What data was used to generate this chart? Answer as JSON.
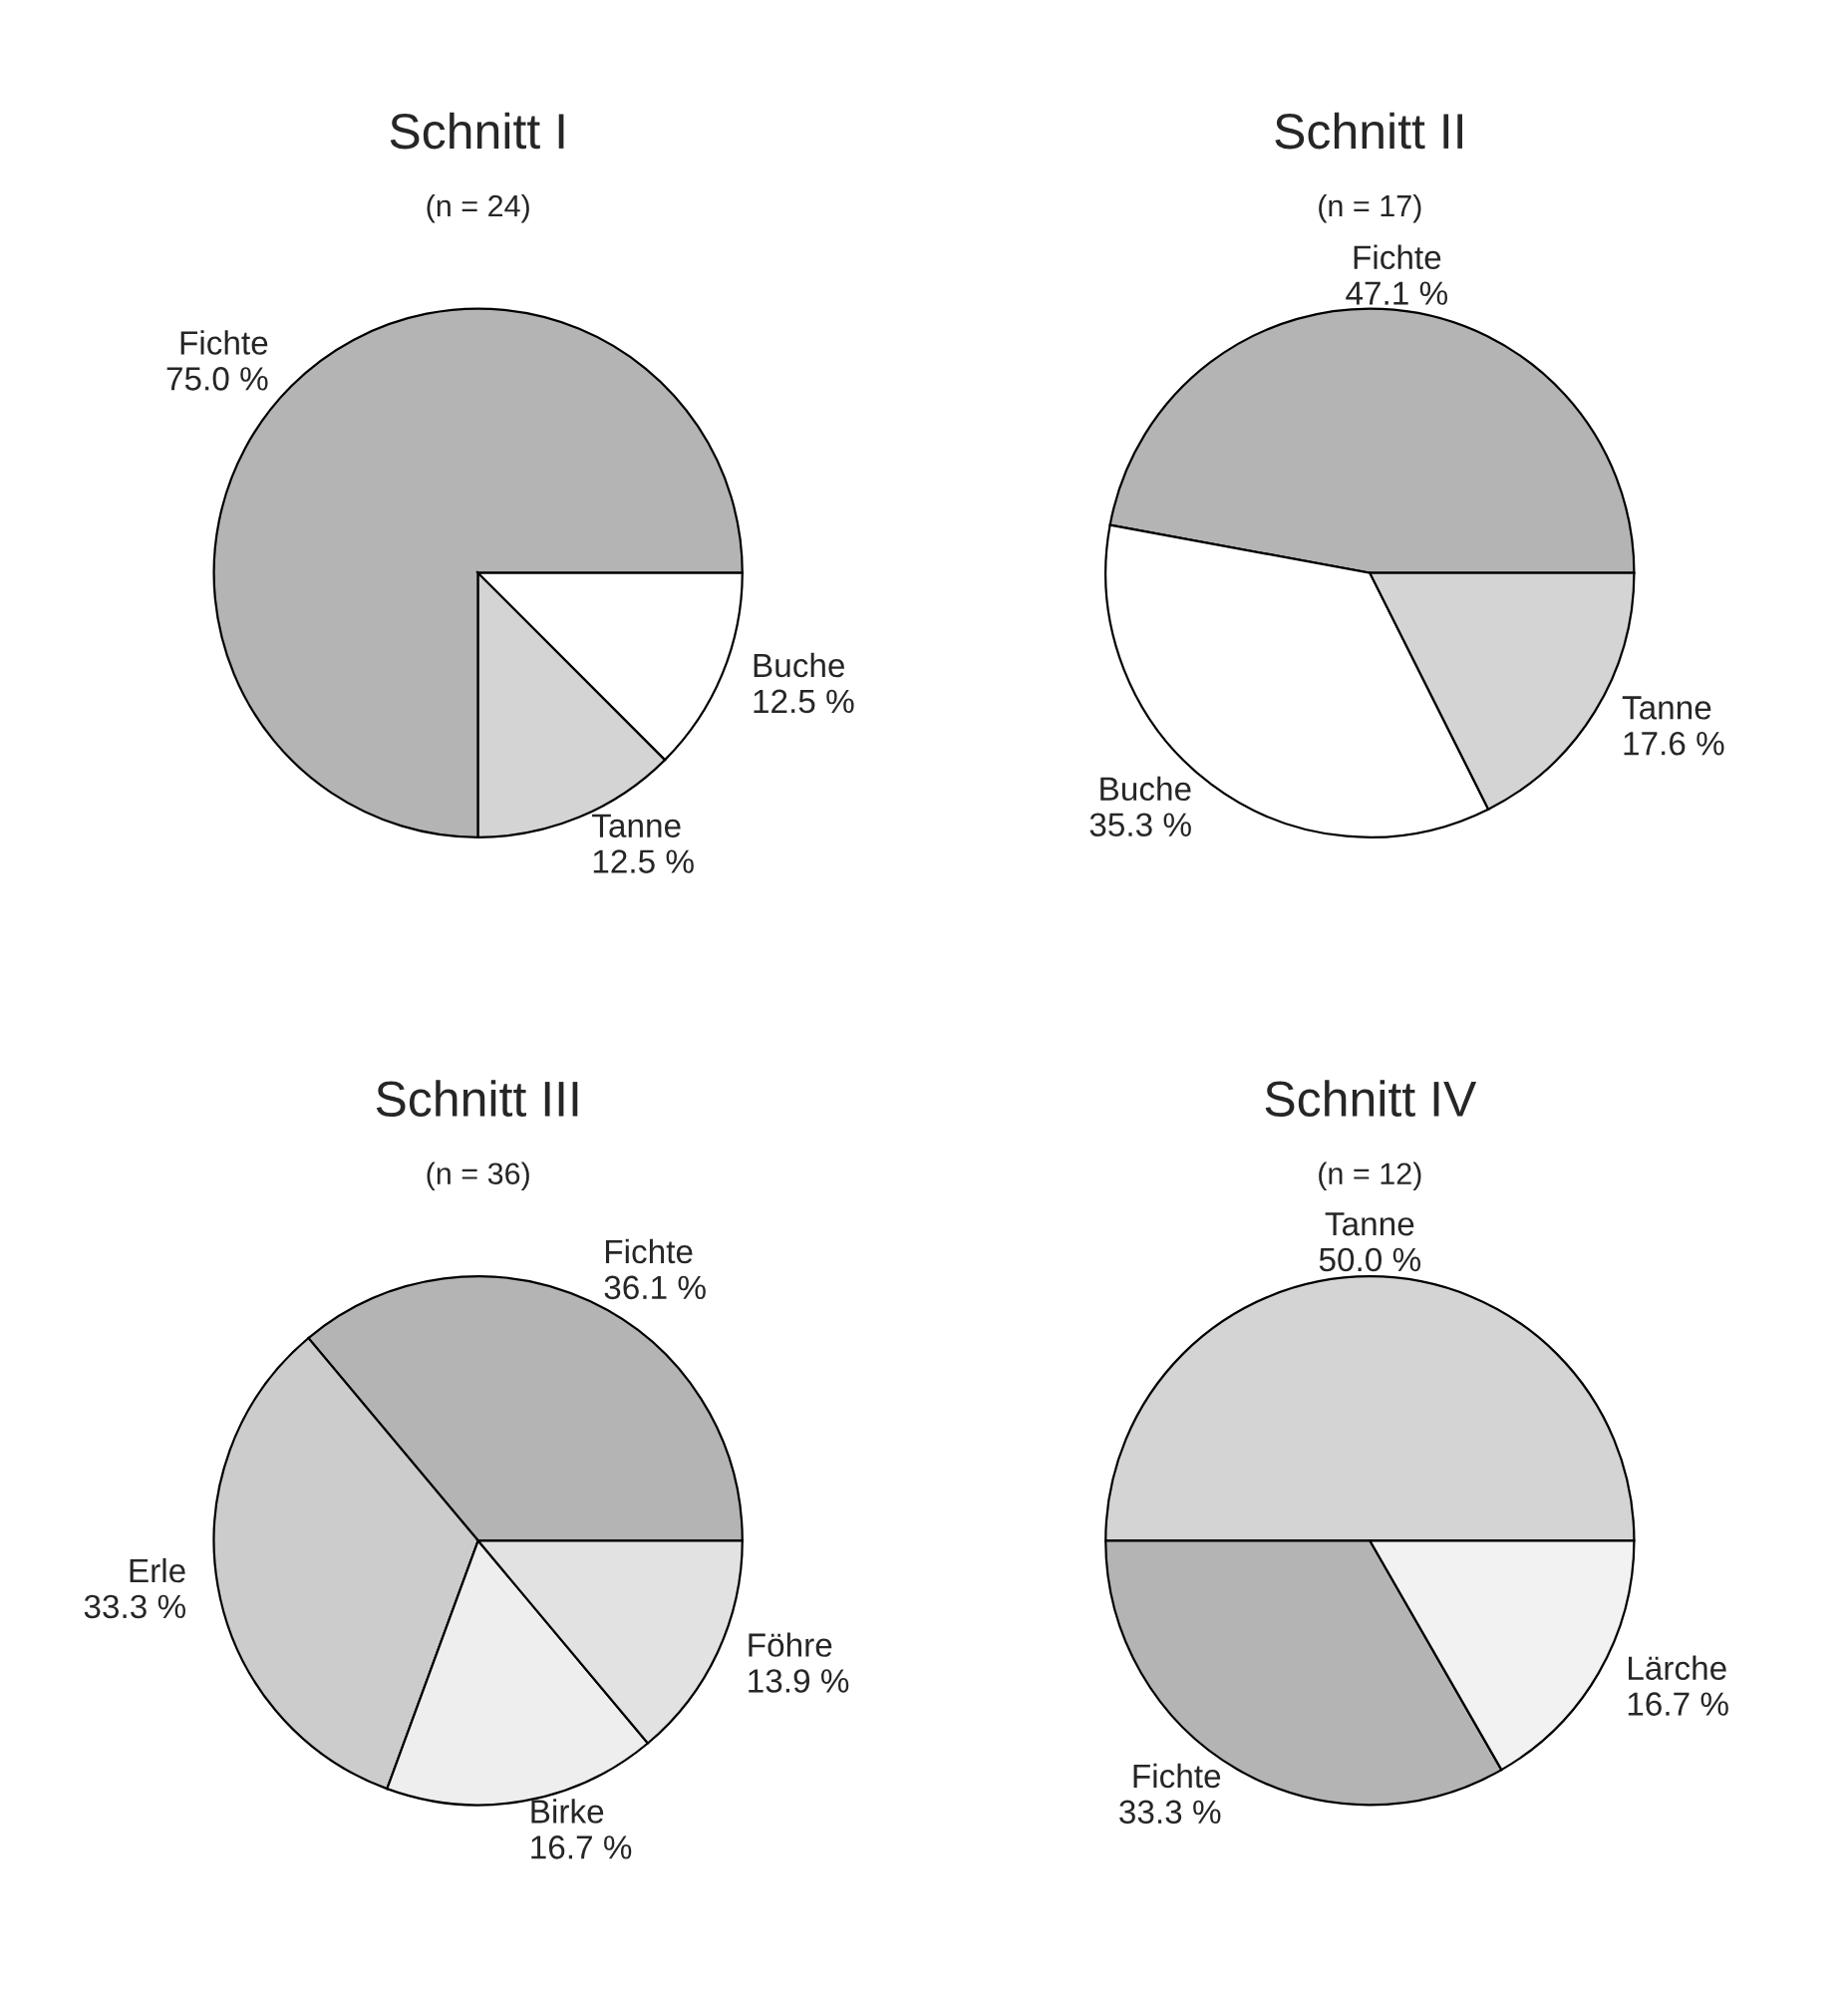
{
  "chart_data": [
    {
      "type": "pie",
      "title": "Schnitt I",
      "subtitle": "(n = 24)",
      "categories": [
        "Fichte",
        "Tanne",
        "Buche"
      ],
      "values": [
        75.0,
        12.5,
        12.5
      ],
      "value_labels": [
        "75.0 %",
        "12.5 %",
        "12.5 %"
      ],
      "colors": [
        "#b4b4b4",
        "#d4d4d4",
        "#ffffff"
      ]
    },
    {
      "type": "pie",
      "title": "Schnitt II",
      "subtitle": "(n = 17)",
      "categories": [
        "Fichte",
        "Buche",
        "Tanne"
      ],
      "values": [
        47.1,
        35.3,
        17.6
      ],
      "value_labels": [
        "47.1 %",
        "35.3 %",
        "17.6 %"
      ],
      "colors": [
        "#b4b4b4",
        "#ffffff",
        "#d4d4d4"
      ]
    },
    {
      "type": "pie",
      "title": "Schnitt III",
      "subtitle": "(n = 36)",
      "categories": [
        "Fichte",
        "Erle",
        "Birke",
        "Föhre"
      ],
      "values": [
        36.1,
        33.3,
        16.7,
        13.9
      ],
      "value_labels": [
        "36.1 %",
        "33.3 %",
        "16.7 %",
        "13.9 %"
      ],
      "colors": [
        "#b4b4b4",
        "#cccccc",
        "#eeeeee",
        "#e2e2e2"
      ]
    },
    {
      "type": "pie",
      "title": "Schnitt IV",
      "subtitle": "(n = 12)",
      "categories": [
        "Tanne",
        "Fichte",
        "Lärche"
      ],
      "values": [
        50.0,
        33.3,
        16.7
      ],
      "value_labels": [
        "50.0 %",
        "33.3 %",
        "16.7 %"
      ],
      "colors": [
        "#d4d4d4",
        "#b4b4b4",
        "#f2f2f2"
      ]
    }
  ]
}
